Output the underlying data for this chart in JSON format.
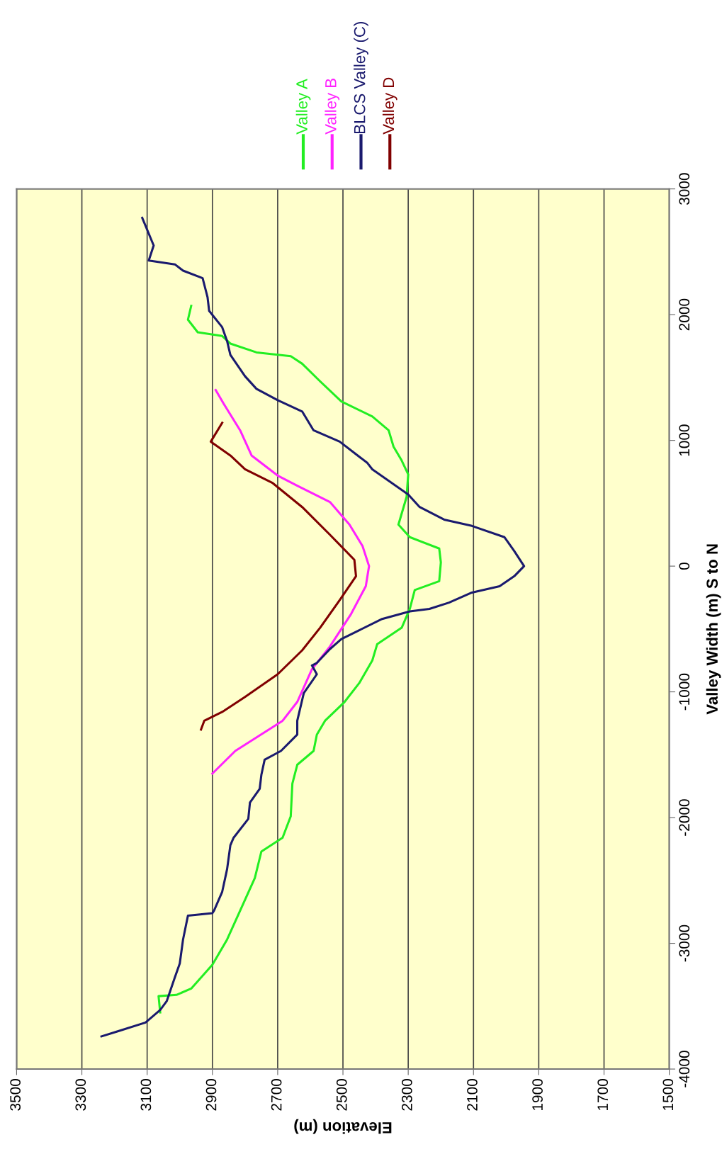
{
  "chart_data": {
    "type": "line",
    "orientation": "horizontal",
    "xlabel": "Elevation (m)",
    "ylabel": "Valley Width (m) S to N",
    "xlim": [
      3500,
      1500
    ],
    "xticks": [
      3500,
      3300,
      3100,
      2900,
      2700,
      2500,
      2300,
      2100,
      1900,
      1700,
      1500
    ],
    "ylim": [
      -4000,
      3000
    ],
    "yticks": [
      -4000,
      -3000,
      -2000,
      -1000,
      0,
      1000,
      2000,
      3000
    ],
    "grid": "x",
    "legend": "top right",
    "series": [
      {
        "name": "Valley A",
        "color": "#22ee22",
        "x": [
          2070,
          1960,
          1860,
          1830,
          1770,
          1700,
          1670,
          1610,
          1470,
          1310,
          1190,
          1080,
          950,
          840,
          730,
          550,
          330,
          230,
          140,
          30,
          -120,
          -190,
          -340,
          -490,
          -620,
          -750,
          -930,
          -1080,
          -1230,
          -1340,
          -1470,
          -1580,
          -1730,
          -1990,
          -2160,
          -2270,
          -2480,
          -2740,
          -2970,
          -3170,
          -3360,
          -3410,
          -3420,
          -3550
        ],
        "values": [
          2965,
          2975,
          2945,
          2870,
          2845,
          2765,
          2660,
          2625,
          2570,
          2505,
          2410,
          2360,
          2345,
          2320,
          2300,
          2305,
          2330,
          2295,
          2205,
          2200,
          2205,
          2280,
          2295,
          2320,
          2395,
          2410,
          2450,
          2495,
          2555,
          2580,
          2590,
          2640,
          2655,
          2660,
          2685,
          2750,
          2770,
          2815,
          2855,
          2900,
          2965,
          3010,
          3065,
          3060
        ]
      },
      {
        "name": "Valley B",
        "color": "#ff22ff",
        "x": [
          1400,
          1290,
          1080,
          880,
          720,
          640,
          510,
          330,
          160,
          0,
          -160,
          -380,
          -640,
          -820,
          -1080,
          -1230,
          -1470,
          -1650
        ],
        "values": [
          2890,
          2865,
          2815,
          2780,
          2700,
          2640,
          2540,
          2480,
          2440,
          2420,
          2430,
          2475,
          2540,
          2595,
          2640,
          2685,
          2830,
          2900
        ]
      },
      {
        "name": "BLCS Valley (C)",
        "color": "#1a1a6e",
        "x": [
          2770,
          2550,
          2430,
          2400,
          2350,
          2290,
          2140,
          2030,
          1900,
          1790,
          1680,
          1510,
          1410,
          1320,
          1230,
          1080,
          990,
          820,
          770,
          570,
          470,
          370,
          320,
          230,
          120,
          0,
          -80,
          -160,
          -210,
          -290,
          -340,
          -360,
          -420,
          -510,
          -580,
          -660,
          -770,
          -790,
          -860,
          -1010,
          -1230,
          -1340,
          -1470,
          -1540,
          -1660,
          -1770,
          -1880,
          -2010,
          -2160,
          -2220,
          -2410,
          -2590,
          -2740,
          -2760,
          -2780,
          -2970,
          -3160,
          -3270,
          -3460,
          -3530,
          -3630,
          -3700,
          -3740
        ],
        "values": [
          3115,
          3080,
          3095,
          3015,
          2990,
          2930,
          2915,
          2910,
          2870,
          2855,
          2845,
          2800,
          2765,
          2700,
          2625,
          2590,
          2510,
          2425,
          2410,
          2300,
          2265,
          2190,
          2105,
          2005,
          1975,
          1945,
          1975,
          2020,
          2105,
          2175,
          2235,
          2295,
          2380,
          2450,
          2505,
          2540,
          2580,
          2595,
          2580,
          2620,
          2640,
          2640,
          2690,
          2740,
          2750,
          2755,
          2785,
          2790,
          2835,
          2845,
          2855,
          2870,
          2895,
          2900,
          2975,
          2990,
          3000,
          3015,
          3040,
          3060,
          3105,
          3190,
          3240
        ]
      },
      {
        "name": "Valley D",
        "color": "#800000",
        "x": [
          1140,
          990,
          880,
          770,
          660,
          470,
          250,
          50,
          -80,
          -270,
          -490,
          -670,
          -860,
          -1040,
          -1160,
          -1230,
          -1300
        ],
        "values": [
          2870,
          2905,
          2845,
          2800,
          2715,
          2625,
          2540,
          2465,
          2460,
          2510,
          2570,
          2625,
          2700,
          2800,
          2870,
          2925,
          2935
        ]
      }
    ]
  }
}
